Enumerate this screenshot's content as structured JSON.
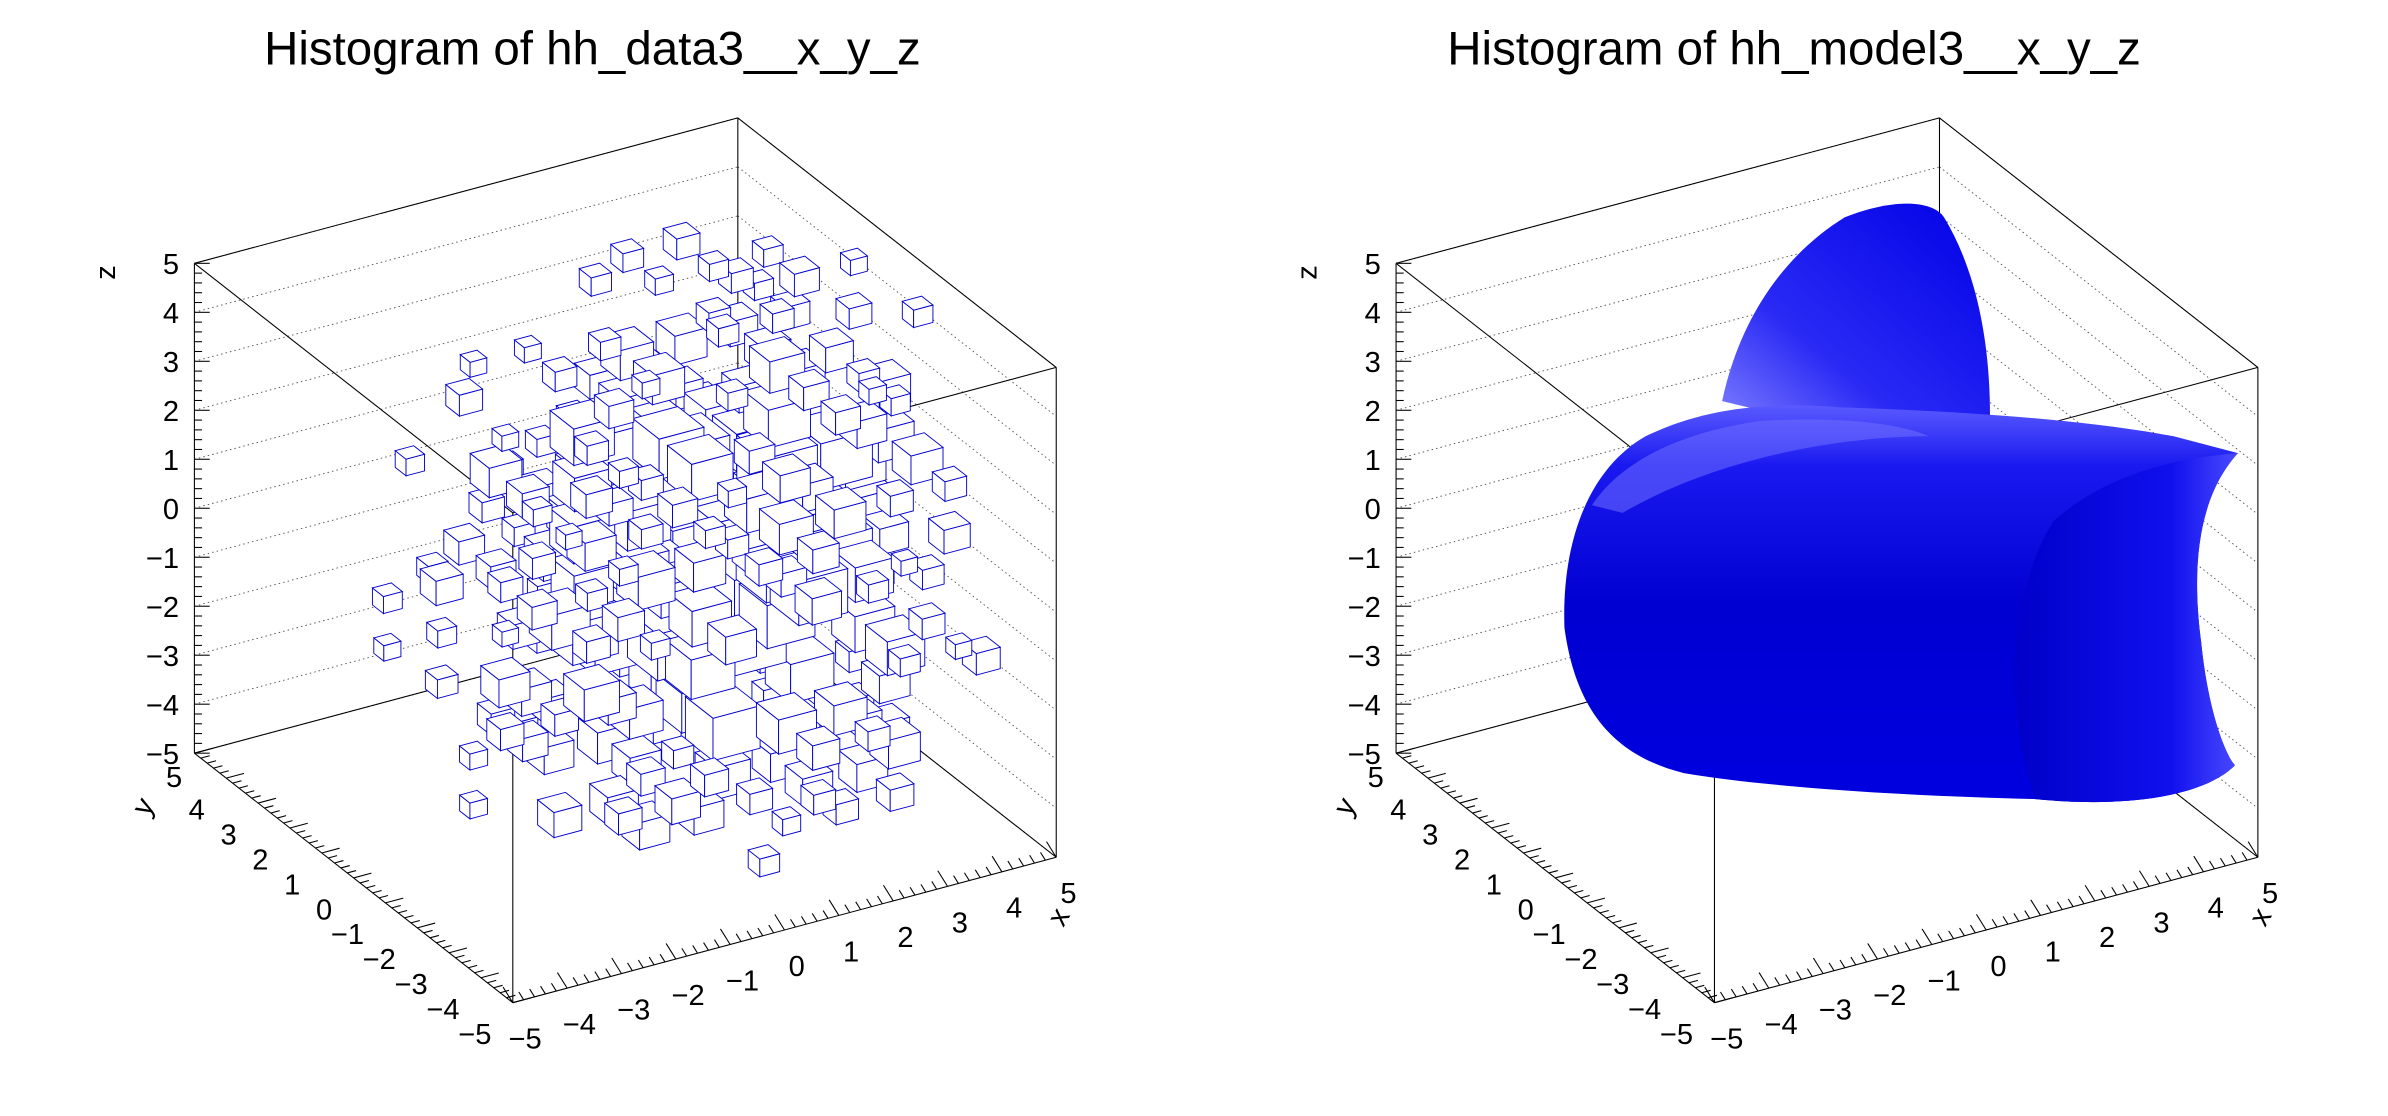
{
  "chart_data": [
    {
      "type": "box3d",
      "title": "Histogram of hh_data3__x_y_z",
      "xlabel": "x",
      "ylabel": "y",
      "zlabel": "z",
      "xlim": [
        -5,
        5
      ],
      "ylim": [
        -5,
        5
      ],
      "zlim": [
        -5,
        5
      ],
      "x_ticks": [
        "−5",
        "−4",
        "−3",
        "−2",
        "−1",
        "0",
        "1",
        "2",
        "3",
        "4",
        "5"
      ],
      "y_ticks": [
        "−5",
        "−4",
        "−3",
        "−2",
        "−1",
        "0",
        "1",
        "2",
        "3",
        "4",
        "5"
      ],
      "z_ticks": [
        "−5",
        "−4",
        "−3",
        "−2",
        "−1",
        "0",
        "1",
        "2",
        "3",
        "4",
        "5"
      ],
      "grid": true,
      "box_color": "#0000cc"
    },
    {
      "type": "iso-surface",
      "title": "Histogram of hh_model3__x_y_z",
      "xlabel": "x",
      "ylabel": "y",
      "zlabel": "z",
      "xlim": [
        -5,
        5
      ],
      "ylim": [
        -5,
        5
      ],
      "zlim": [
        -5,
        5
      ],
      "x_ticks": [
        "−5",
        "−4",
        "−3",
        "−2",
        "−1",
        "0",
        "1",
        "2",
        "3",
        "4",
        "5"
      ],
      "y_ticks": [
        "−5",
        "−4",
        "−3",
        "−2",
        "−1",
        "0",
        "1",
        "2",
        "3",
        "4",
        "5"
      ],
      "z_ticks": [
        "−5",
        "−4",
        "−3",
        "−2",
        "−1",
        "0",
        "1",
        "2",
        "3",
        "4",
        "5"
      ],
      "grid": true,
      "surface_color": "#0000dd"
    }
  ]
}
